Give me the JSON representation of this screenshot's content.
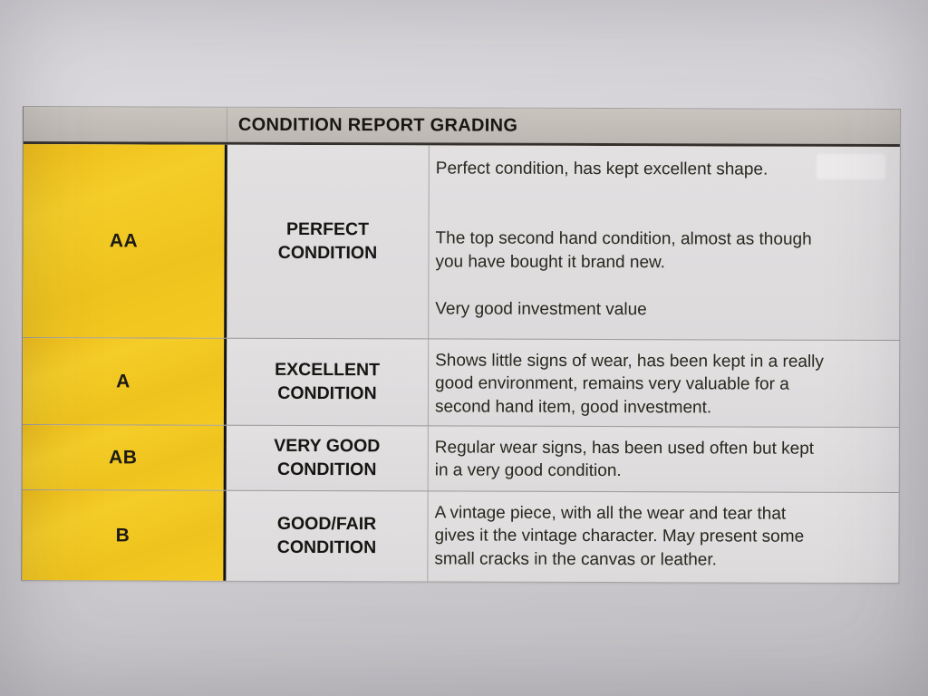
{
  "document": {
    "type": "printed-table-photo",
    "title": "CONDITION REPORT GRADING"
  },
  "table": {
    "title": "CONDITION REPORT GRADING",
    "rows": [
      {
        "grade": "AA",
        "label": "PERFECT\nCONDITION",
        "paragraphs": [
          "Perfect condition, has kept excellent shape.",
          "The top second hand condition, almost as though\nyou have bought it brand new.",
          "Very good investment value"
        ]
      },
      {
        "grade": "A",
        "label": "EXCELLENT\nCONDITION",
        "paragraphs": [
          "Shows little signs of wear, has been kept in a really\ngood environment, remains very valuable for a\nsecond hand item, good investment."
        ]
      },
      {
        "grade": "AB",
        "label": "VERY GOOD\nCONDITION",
        "paragraphs": [
          "Regular wear signs, has been used often but kept\nin a very good condition."
        ]
      },
      {
        "grade": "B",
        "label": "GOOD/FAIR\nCONDITION",
        "paragraphs": [
          "A vintage piece, with all the wear and tear that\ngives it the vintage character. May present some\nsmall cracks in the canvas or leather."
        ]
      }
    ]
  },
  "colors": {
    "accent-yellow": "#f2c51f",
    "header-gray": "#bcb7b1",
    "cell-gray": "#e0dedf",
    "paper-gray": "#cdcbcf",
    "ink": "#1d1b17"
  }
}
